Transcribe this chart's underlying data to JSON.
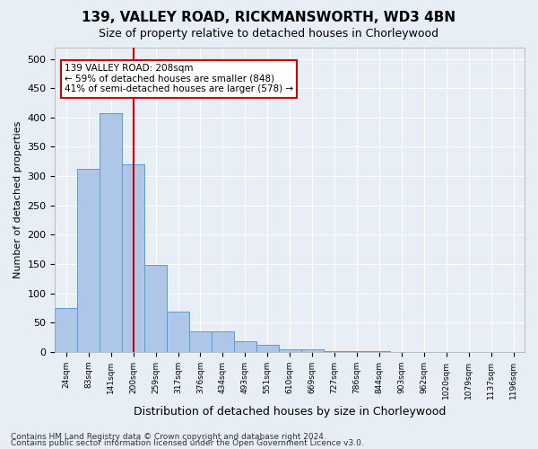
{
  "title": "139, VALLEY ROAD, RICKMANSWORTH, WD3 4BN",
  "subtitle": "Size of property relative to detached houses in Chorleywood",
  "xlabel": "Distribution of detached houses by size in Chorleywood",
  "ylabel": "Number of detached properties",
  "footer_line1": "Contains HM Land Registry data © Crown copyright and database right 2024.",
  "footer_line2": "Contains public sector information licensed under the Open Government Licence v3.0.",
  "bin_labels": [
    "24sqm",
    "83sqm",
    "141sqm",
    "200sqm",
    "259sqm",
    "317sqm",
    "376sqm",
    "434sqm",
    "493sqm",
    "551sqm",
    "610sqm",
    "669sqm",
    "727sqm",
    "786sqm",
    "844sqm",
    "903sqm",
    "962sqm",
    "1020sqm",
    "1079sqm",
    "1137sqm",
    "1196sqm"
  ],
  "bar_heights": [
    75,
    312,
    407,
    320,
    148,
    68,
    35,
    35,
    18,
    12,
    5,
    5,
    2,
    2,
    1,
    0,
    0,
    0,
    0,
    0,
    0
  ],
  "bar_color": "#aec6e8",
  "bar_edge_color": "#5b9bd5",
  "vline_x": 3,
  "vline_color": "#cc0000",
  "annotation_line1": "139 VALLEY ROAD: 208sqm",
  "annotation_line2": "← 59% of detached houses are smaller (848)",
  "annotation_line3": "41% of semi-detached houses are larger (578) →",
  "annotation_box_color": "#ffffff",
  "annotation_box_edge": "#cc0000",
  "ylim": [
    0,
    520
  ],
  "yticks": [
    0,
    50,
    100,
    150,
    200,
    250,
    300,
    350,
    400,
    450,
    500
  ],
  "background_color": "#e8eef5",
  "plot_bg_color": "#e8eef5",
  "grid_color": "#ffffff"
}
